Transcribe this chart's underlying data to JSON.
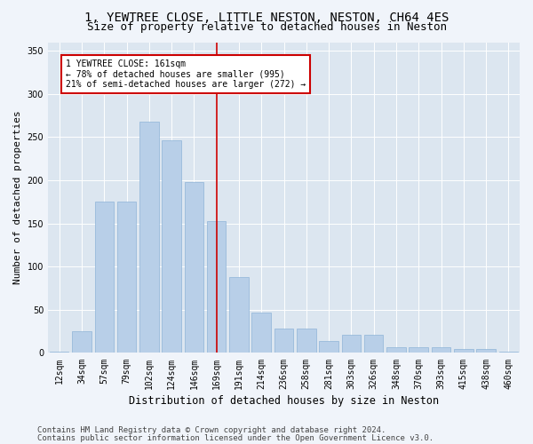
{
  "title_line1": "1, YEWTREE CLOSE, LITTLE NESTON, NESTON, CH64 4ES",
  "title_line2": "Size of property relative to detached houses in Neston",
  "xlabel": "Distribution of detached houses by size in Neston",
  "ylabel": "Number of detached properties",
  "categories": [
    "12sqm",
    "34sqm",
    "57sqm",
    "79sqm",
    "102sqm",
    "124sqm",
    "146sqm",
    "169sqm",
    "191sqm",
    "214sqm",
    "236sqm",
    "258sqm",
    "281sqm",
    "303sqm",
    "326sqm",
    "348sqm",
    "370sqm",
    "393sqm",
    "415sqm",
    "438sqm",
    "460sqm"
  ],
  "values": [
    2,
    25,
    175,
    175,
    268,
    246,
    198,
    153,
    88,
    47,
    28,
    28,
    14,
    21,
    21,
    7,
    7,
    7,
    5,
    5,
    2
  ],
  "bar_color": "#b8cfe8",
  "bar_edgecolor": "#8fb4d8",
  "vline_pos": 7.0,
  "annotation_line1": "1 YEWTREE CLOSE: 161sqm",
  "annotation_line2": "← 78% of detached houses are smaller (995)",
  "annotation_line3": "21% of semi-detached houses are larger (272) →",
  "annotation_box_facecolor": "#ffffff",
  "annotation_box_edgecolor": "#cc0000",
  "vline_color": "#cc0000",
  "fig_facecolor": "#f0f4fa",
  "ax_facecolor": "#dce6f0",
  "grid_color": "#ffffff",
  "ylim": [
    0,
    360
  ],
  "yticks": [
    0,
    50,
    100,
    150,
    200,
    250,
    300,
    350
  ],
  "title_fontsize": 10,
  "subtitle_fontsize": 9,
  "xlabel_fontsize": 8.5,
  "ylabel_fontsize": 8,
  "tick_fontsize": 7,
  "footer_fontsize": 6.5,
  "footer_line1": "Contains HM Land Registry data © Crown copyright and database right 2024.",
  "footer_line2": "Contains public sector information licensed under the Open Government Licence v3.0."
}
